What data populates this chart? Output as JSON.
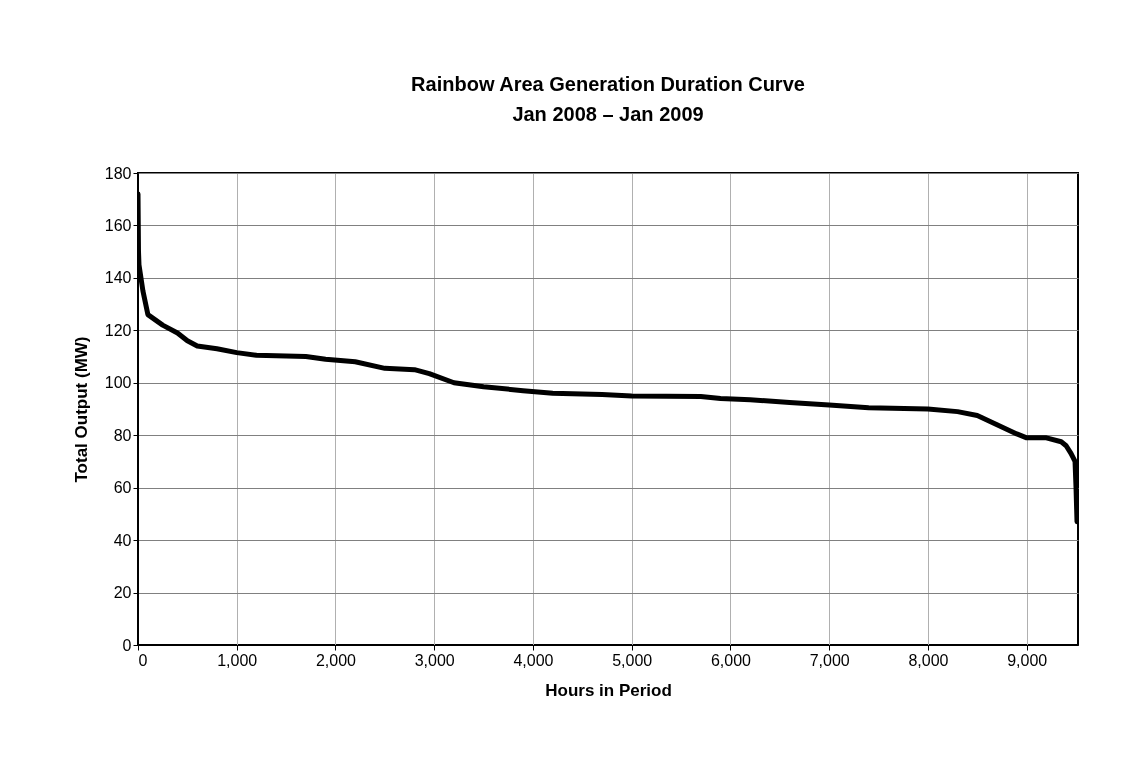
{
  "chart_data": {
    "type": "line",
    "title": "Rainbow Area Generation Duration Curve",
    "subtitle": "Jan 2008 – Jan 2009",
    "xlabel": "Hours in Period",
    "ylabel": "Total Output (MW)",
    "xlim": [
      0,
      9520
    ],
    "xticks": [
      {
        "value": 0,
        "label": "0"
      },
      {
        "value": 1000,
        "label": "1,000"
      },
      {
        "value": 2000,
        "label": "2,000"
      },
      {
        "value": 3000,
        "label": "3,000"
      },
      {
        "value": 4000,
        "label": "4,000"
      },
      {
        "value": 5000,
        "label": "5,000"
      },
      {
        "value": 6000,
        "label": "6,000"
      },
      {
        "value": 7000,
        "label": "7,000"
      },
      {
        "value": 8000,
        "label": "8,000"
      },
      {
        "value": 9000,
        "label": "9,000"
      }
    ],
    "ylim": [
      0,
      180
    ],
    "yticks": [
      0,
      20,
      40,
      60,
      80,
      100,
      120,
      140,
      160,
      180
    ],
    "grid": true,
    "marker": "none",
    "line_style": "solid",
    "series": [
      {
        "color": "#000000",
        "x": [
          0,
          5,
          10,
          50,
          100,
          250,
          400,
          500,
          600,
          800,
          1000,
          1200,
          1700,
          1900,
          2200,
          2500,
          2800,
          2950,
          3200,
          3500,
          3900,
          4200,
          4700,
          5000,
          5700,
          5900,
          6200,
          6600,
          7000,
          7400,
          8000,
          8300,
          8500,
          8700,
          8900,
          9000,
          9200,
          9350,
          9400,
          9450,
          9490,
          9500,
          9510
        ],
        "values": [
          172,
          150,
          145,
          135,
          126,
          122,
          119,
          116,
          114,
          113,
          111.5,
          110.5,
          110,
          109,
          108,
          105.5,
          105,
          103.5,
          100,
          98.5,
          97,
          96,
          95.5,
          95,
          94.8,
          94,
          93.5,
          92.5,
          91.5,
          90.5,
          90,
          89,
          87.5,
          84,
          80.5,
          79,
          79,
          77.5,
          76,
          73,
          70,
          60,
          47
        ]
      }
    ]
  }
}
